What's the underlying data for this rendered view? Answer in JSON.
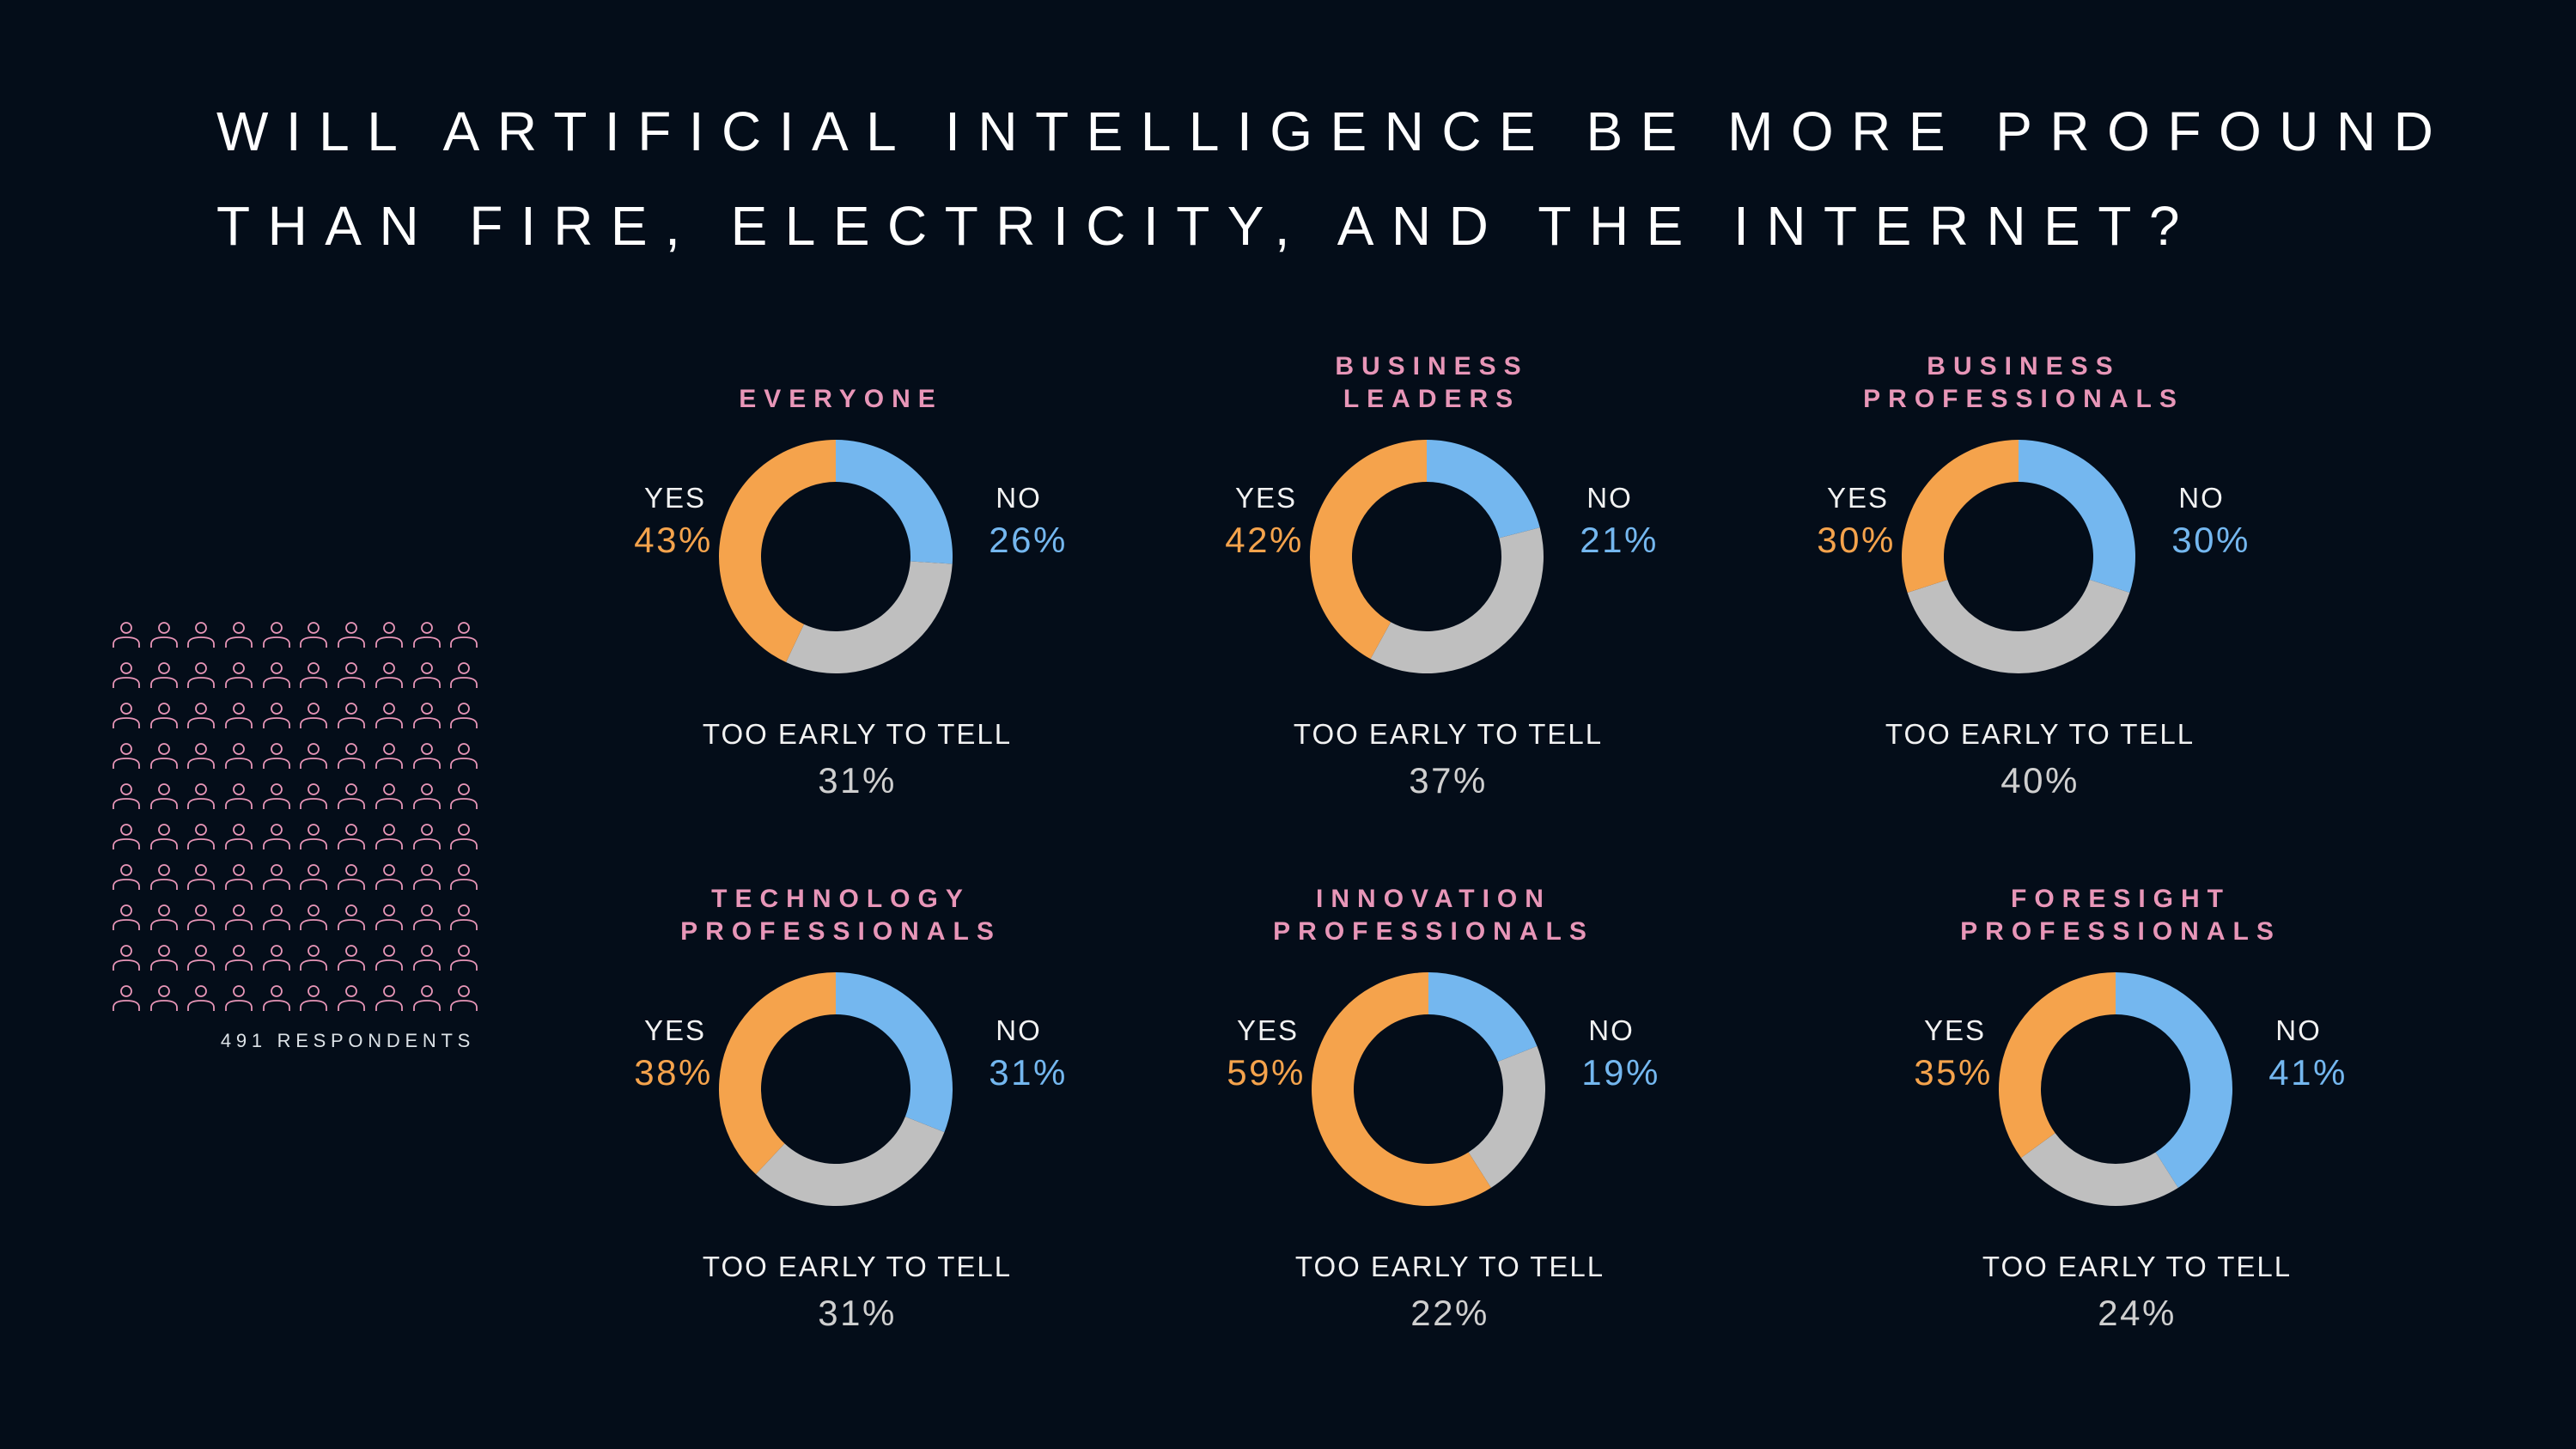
{
  "title": {
    "line1": "WILL ARTIFICIAL INTELLIGENCE BE MORE PROFOUND",
    "line2": "THAN FIRE, ELECTRICITY, AND THE INTERNET?"
  },
  "respondents": {
    "label": "491 RESPONDENTS",
    "icon_count": 100,
    "icon": "person-outline-icon"
  },
  "colors": {
    "yes": "#f5a34c",
    "no": "#74b7ef",
    "too_early": "#bfbfbf",
    "group_title": "#e896b8",
    "background": "#040d19"
  },
  "labels": {
    "yes": "YES",
    "no": "NO",
    "too_early": "TOO EARLY TO TELL"
  },
  "chart_data": [
    {
      "type": "pie",
      "title": [
        "EVERYONE"
      ],
      "categories": [
        "NO",
        "TOO EARLY TO TELL",
        "YES"
      ],
      "values": [
        26,
        31,
        43
      ],
      "value_labels": [
        "26%",
        "31%",
        "43%"
      ]
    },
    {
      "type": "pie",
      "title": [
        "BUSINESS",
        "LEADERS"
      ],
      "categories": [
        "NO",
        "TOO EARLY TO TELL",
        "YES"
      ],
      "values": [
        21,
        37,
        42
      ],
      "value_labels": [
        "21%",
        "37%",
        "42%"
      ]
    },
    {
      "type": "pie",
      "title": [
        "BUSINESS",
        "PROFESSIONALS"
      ],
      "categories": [
        "NO",
        "TOO EARLY TO TELL",
        "YES"
      ],
      "values": [
        30,
        40,
        30
      ],
      "value_labels": [
        "30%",
        "40%",
        "30%"
      ]
    },
    {
      "type": "pie",
      "title": [
        "TECHNOLOGY",
        "PROFESSIONALS"
      ],
      "categories": [
        "NO",
        "TOO EARLY TO TELL",
        "YES"
      ],
      "values": [
        31,
        31,
        38
      ],
      "value_labels": [
        "31%",
        "31%",
        "38%"
      ]
    },
    {
      "type": "pie",
      "title": [
        "INNOVATION",
        "PROFESSIONALS"
      ],
      "categories": [
        "NO",
        "TOO EARLY TO TELL",
        "YES"
      ],
      "values": [
        19,
        22,
        59
      ],
      "value_labels": [
        "19%",
        "22%",
        "59%"
      ]
    },
    {
      "type": "pie",
      "title": [
        "FORESIGHT",
        "PROFESSIONALS"
      ],
      "categories": [
        "NO",
        "TOO EARLY TO TELL",
        "YES"
      ],
      "values": [
        41,
        24,
        35
      ],
      "value_labels": [
        "41%",
        "24%",
        "35%"
      ]
    }
  ]
}
